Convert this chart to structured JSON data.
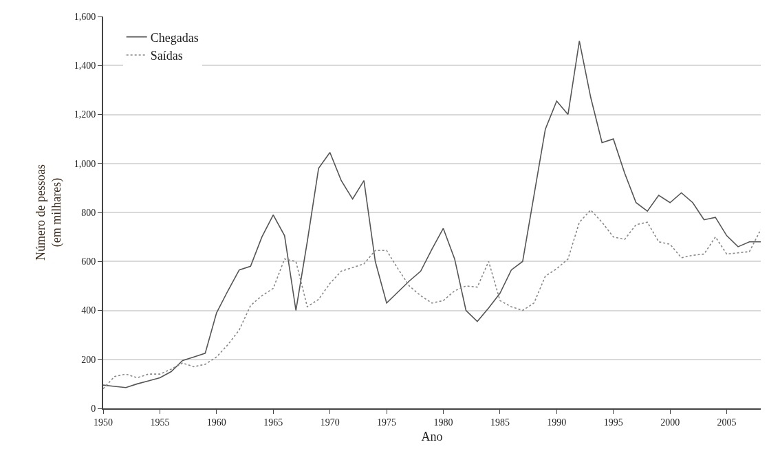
{
  "chart_data": {
    "type": "line",
    "xlabel": "Ano",
    "ylabel": "Número de pessoas\n(em milhares)",
    "x": [
      1950,
      1951,
      1952,
      1953,
      1954,
      1955,
      1956,
      1957,
      1958,
      1959,
      1960,
      1961,
      1962,
      1963,
      1964,
      1965,
      1966,
      1967,
      1968,
      1969,
      1970,
      1971,
      1972,
      1973,
      1974,
      1975,
      1976,
      1977,
      1978,
      1979,
      1980,
      1981,
      1982,
      1983,
      1984,
      1985,
      1986,
      1987,
      1988,
      1989,
      1990,
      1991,
      1992,
      1993,
      1994,
      1995,
      1996,
      1997,
      1998,
      1999,
      2000,
      2001,
      2002,
      2003,
      2004,
      2005,
      2006,
      2007,
      2008
    ],
    "series": [
      {
        "name": "Chegadas",
        "color": "#555555",
        "line_style": "solid",
        "values": [
          95,
          90,
          85,
          100,
          112,
          125,
          150,
          195,
          210,
          225,
          390,
          480,
          565,
          580,
          700,
          790,
          705,
          400,
          680,
          980,
          1045,
          930,
          855,
          930,
          600,
          430,
          475,
          520,
          560,
          650,
          735,
          610,
          400,
          355,
          410,
          470,
          565,
          600,
          870,
          1140,
          1255,
          1200,
          1500,
          1270,
          1085,
          1100,
          960,
          840,
          805,
          870,
          840,
          880,
          840,
          770,
          780,
          705,
          660,
          680,
          680
        ]
      },
      {
        "name": "Saídas",
        "color": "#888888",
        "line_style": "dotted",
        "values": [
          80,
          130,
          140,
          125,
          140,
          140,
          160,
          185,
          170,
          180,
          210,
          260,
          320,
          420,
          460,
          490,
          610,
          600,
          415,
          445,
          510,
          560,
          575,
          590,
          645,
          645,
          570,
          500,
          460,
          430,
          440,
          480,
          500,
          495,
          600,
          440,
          415,
          400,
          430,
          540,
          570,
          610,
          760,
          810,
          760,
          700,
          690,
          750,
          760,
          680,
          670,
          615,
          625,
          630,
          700,
          630,
          635,
          640,
          730
        ]
      }
    ],
    "xlim": [
      1950,
      2008
    ],
    "xticks": [
      1950,
      1955,
      1960,
      1965,
      1970,
      1975,
      1980,
      1985,
      1990,
      1995,
      2000,
      2005
    ],
    "ylim": [
      0,
      1600
    ],
    "yticks": [
      0,
      200,
      400,
      600,
      800,
      {
        "value": 1000,
        "label": "1,000"
      },
      {
        "value": 1200,
        "label": "1,200"
      },
      {
        "value": 1400,
        "label": "1,400"
      },
      {
        "value": 1600,
        "label": "1,600"
      }
    ],
    "grid": "y",
    "legend": "top left",
    "marker": "none"
  }
}
